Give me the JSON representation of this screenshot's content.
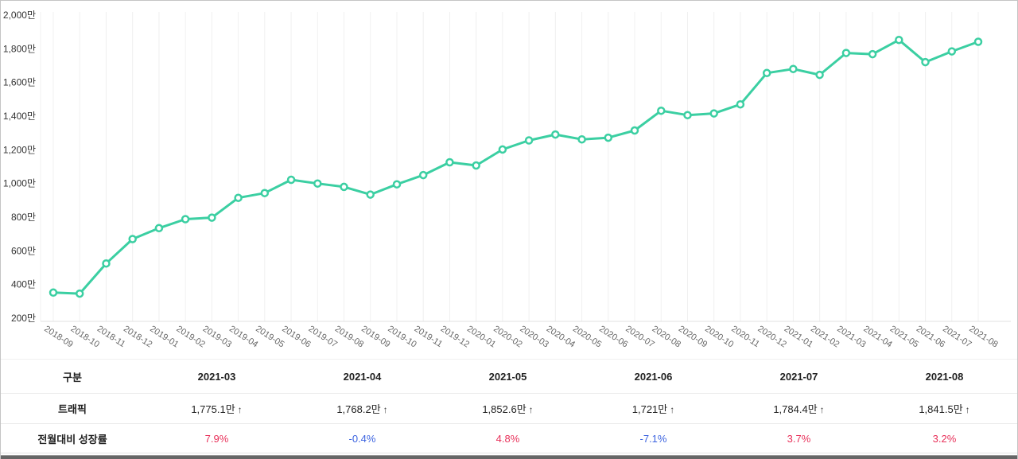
{
  "chart_data": {
    "type": "line",
    "title": "",
    "xlabel": "",
    "ylabel": "",
    "unit": "만",
    "ylim": [
      200,
      2000
    ],
    "grid": "vertical-only",
    "legend": "none",
    "x": [
      "2018-09",
      "2018-10",
      "2018-11",
      "2018-12",
      "2019-01",
      "2019-02",
      "2019-03",
      "2019-04",
      "2019-05",
      "2019-06",
      "2019-07",
      "2019-08",
      "2019-09",
      "2019-10",
      "2019-11",
      "2019-12",
      "2020-01",
      "2020-02",
      "2020-03",
      "2020-04",
      "2020-05",
      "2020-06",
      "2020-07",
      "2020-08",
      "2020-09",
      "2020-10",
      "2020-11",
      "2020-12",
      "2021-01",
      "2021-02",
      "2021-03",
      "2021-04",
      "2021-05",
      "2021-06",
      "2021-07",
      "2021-08"
    ],
    "series": [
      {
        "name": "트래픽",
        "values": [
          352,
          346,
          525,
          670,
          735,
          788,
          797,
          915,
          943,
          1022,
          1000,
          980,
          934,
          995,
          1050,
          1126,
          1107,
          1202,
          1256,
          1291,
          1262,
          1272,
          1315,
          1432,
          1406,
          1416,
          1470,
          1656,
          1680,
          1645,
          1775.1,
          1768.2,
          1852.6,
          1721,
          1784.4,
          1841.5
        ]
      }
    ],
    "y_ticks": [
      {
        "value": 200,
        "label": "200만"
      },
      {
        "value": 400,
        "label": "400만"
      },
      {
        "value": 600,
        "label": "600만"
      },
      {
        "value": 800,
        "label": "800만"
      },
      {
        "value": 1000,
        "label": "1,000만"
      },
      {
        "value": 1200,
        "label": "1,200만"
      },
      {
        "value": 1400,
        "label": "1,400만"
      },
      {
        "value": 1600,
        "label": "1,600만"
      },
      {
        "value": 1800,
        "label": "1,800만"
      },
      {
        "value": 2000,
        "label": "2,000만"
      }
    ]
  },
  "table": {
    "corner_header": "구분",
    "month_headers": [
      "2021-03",
      "2021-04",
      "2021-05",
      "2021-06",
      "2021-07",
      "2021-08"
    ],
    "rows": [
      {
        "label": "트래픽",
        "values": [
          "1,775.1만",
          "1,768.2만",
          "1,852.6만",
          "1,721만",
          "1,784.4만",
          "1,841.5만"
        ],
        "suffix": "↑"
      },
      {
        "label": "전월대비 성장률",
        "values": [
          "7.9%",
          "-0.4%",
          "4.8%",
          "-7.1%",
          "3.7%",
          "3.2%"
        ]
      }
    ]
  },
  "colors": {
    "line": "#3bcfa2",
    "marker_fill": "#ffffff",
    "growth_up": "#e8315a",
    "growth_down": "#3d64e0",
    "grid": "#f0f0f0",
    "axis": "#e0e0e0"
  }
}
